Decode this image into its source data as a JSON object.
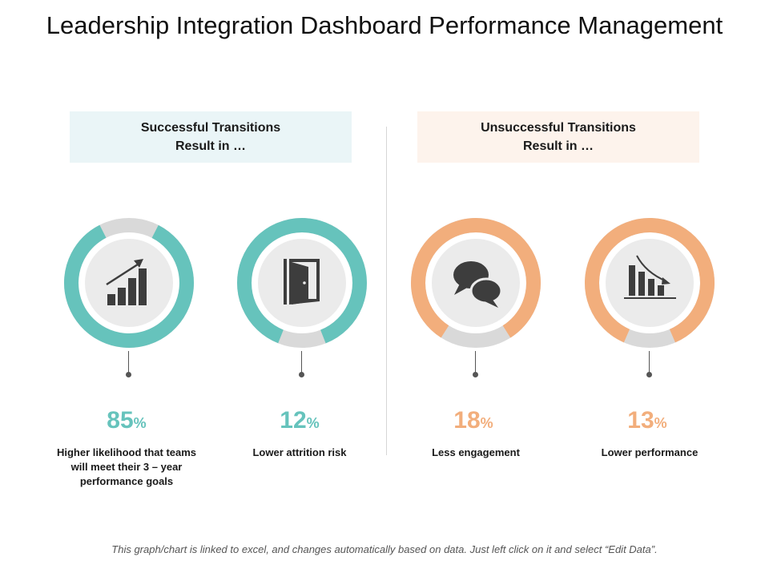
{
  "title": "Leadership Integration Dashboard Performance Management",
  "sections": [
    {
      "line1": "Successful Transitions",
      "line2": "Result in …"
    },
    {
      "line1": "Unsuccessful Transitions",
      "line2": "Result in …"
    }
  ],
  "metrics": [
    {
      "value": "85",
      "unit": "%",
      "label": "Higher likelihood that teams will meet their 3 – year performance goals",
      "icon": "growth-chart-icon",
      "fraction": 0.85,
      "color": "#66c3bc"
    },
    {
      "value": "12",
      "unit": "%",
      "label": "Lower attrition risk",
      "icon": "door-icon",
      "fraction": 0.88,
      "color": "#66c3bc"
    },
    {
      "value": "18",
      "unit": "%",
      "label": "Less engagement",
      "icon": "speech-bubbles-icon",
      "fraction": 0.82,
      "color": "#f2ae7c"
    },
    {
      "value": "13",
      "unit": "%",
      "label": "Lower performance",
      "icon": "decline-chart-icon",
      "fraction": 0.87,
      "color": "#f2ae7c"
    }
  ],
  "colors": {
    "teal": "#66c3bc",
    "orange": "#f2ae7c",
    "track": "#d9d9d9",
    "inner": "#ebebeb"
  },
  "footer": "This graph/chart is linked to excel, and changes automatically based on data. Just left click on it and select “Edit Data”."
}
